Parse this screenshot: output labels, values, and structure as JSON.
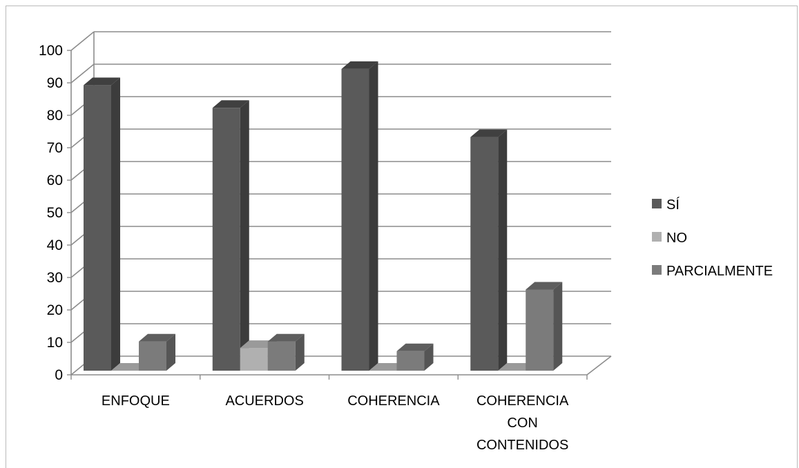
{
  "chart_data": {
    "type": "bar",
    "categories": [
      [
        "ENFOQUE"
      ],
      [
        "ACUERDOS"
      ],
      [
        "COHERENCIA"
      ],
      [
        "COHERENCIA",
        "CON",
        "CONTENIDOS"
      ]
    ],
    "series": [
      {
        "name": "SÍ",
        "values": [
          88,
          81,
          93,
          72
        ]
      },
      {
        "name": "NO",
        "values": [
          0,
          7,
          0,
          0
        ]
      },
      {
        "name": "PARCIALMENTE",
        "values": [
          9,
          9,
          6,
          25
        ]
      }
    ],
    "y_ticks": [
      "0",
      "10",
      "20",
      "30",
      "40",
      "50",
      "60",
      "70",
      "80",
      "90",
      "100"
    ],
    "ylim": [
      0,
      100
    ],
    "grid": true,
    "legend_position": "right",
    "style": "3d-clustered-column",
    "colors": {
      "series": [
        "#5a5a5a",
        "#b0b0b0",
        "#7b7b7b"
      ],
      "series_side": [
        "#3c3c3c",
        "#8a8a8a",
        "#555555"
      ],
      "series_top": [
        "#404040",
        "#9a9a9a",
        "#5e5e5e"
      ],
      "grid": "#8c8c8c",
      "axis": "#8c8c8c"
    }
  }
}
